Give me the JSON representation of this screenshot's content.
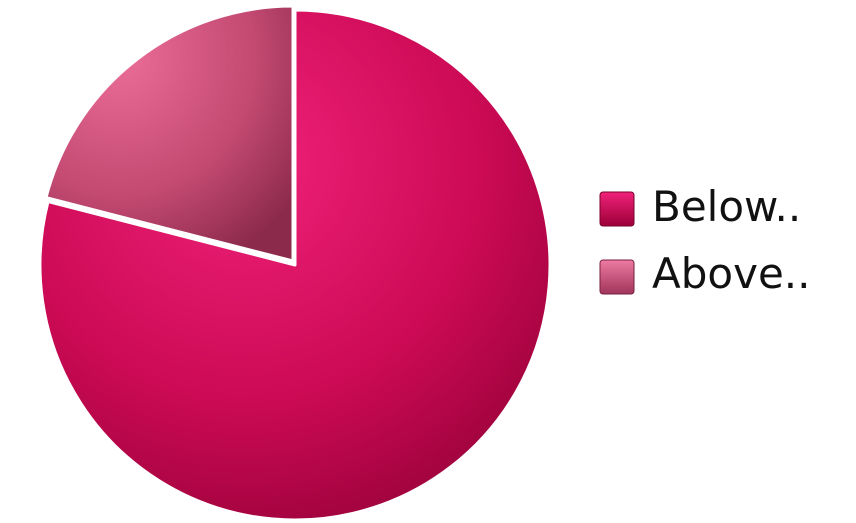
{
  "chart_data": {
    "type": "pie",
    "title": "",
    "legend_position": "right",
    "slices": [
      {
        "label": "Below..",
        "value": 79,
        "color": "#cc0a55"
      },
      {
        "label": "Above..",
        "value": 21,
        "color": "#c44a72"
      }
    ]
  }
}
